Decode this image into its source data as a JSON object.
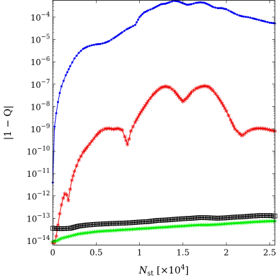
{
  "chart_data": {
    "type": "line",
    "xlabel": "N_st [×10^4]",
    "xlabel_parts": {
      "main": "N",
      "sub": "st",
      "rest": "[×10",
      "sup": "4",
      "close": "]"
    },
    "ylabel": "|1 − Q|",
    "xlim": [
      0,
      2.56
    ],
    "ylim_log10": [
      -14.2,
      -3.25
    ],
    "y_scale": "log",
    "grid": false,
    "x_ticks": [
      {
        "value": 0,
        "label": "0"
      },
      {
        "value": 0.5,
        "label": "0.5"
      },
      {
        "value": 1,
        "label": "1"
      },
      {
        "value": 1.5,
        "label": "1.5"
      },
      {
        "value": 2,
        "label": "2"
      },
      {
        "value": 2.5,
        "label": "2.5"
      }
    ],
    "y_ticks": [
      {
        "exp": -14,
        "base": "10",
        "sup": "−14"
      },
      {
        "exp": -13,
        "base": "10",
        "sup": "−13"
      },
      {
        "exp": -12,
        "base": "10",
        "sup": "−12"
      },
      {
        "exp": -11,
        "base": "10",
        "sup": "−11"
      },
      {
        "exp": -10,
        "base": "10",
        "sup": "−10"
      },
      {
        "exp": -9,
        "base": "10",
        "sup": "−9"
      },
      {
        "exp": -8,
        "base": "10",
        "sup": "−8"
      },
      {
        "exp": -7,
        "base": "10",
        "sup": "−7"
      },
      {
        "exp": -6,
        "base": "10",
        "sup": "−6"
      },
      {
        "exp": -5,
        "base": "10",
        "sup": "−5"
      },
      {
        "exp": -4,
        "base": "10",
        "sup": "−4"
      }
    ],
    "series": [
      {
        "color": "#0000ee",
        "marker": "dot",
        "log10_y": [
          [
            0,
            -11.4
          ],
          [
            0.02,
            -8.9
          ],
          [
            0.04,
            -8.3
          ],
          [
            0.06,
            -7.8
          ],
          [
            0.08,
            -7.4
          ],
          [
            0.1,
            -7.1
          ],
          [
            0.15,
            -6.6
          ],
          [
            0.2,
            -6.2
          ],
          [
            0.25,
            -5.85
          ],
          [
            0.3,
            -5.6
          ],
          [
            0.35,
            -5.42
          ],
          [
            0.4,
            -5.32
          ],
          [
            0.45,
            -5.26
          ],
          [
            0.5,
            -5.22
          ],
          [
            0.55,
            -5.2
          ],
          [
            0.6,
            -5.15
          ],
          [
            0.65,
            -5.07
          ],
          [
            0.7,
            -4.95
          ],
          [
            0.75,
            -4.82
          ],
          [
            0.8,
            -4.68
          ],
          [
            0.85,
            -4.55
          ],
          [
            0.9,
            -4.45
          ],
          [
            0.95,
            -4.35
          ],
          [
            1.0,
            -4.0
          ],
          [
            1.05,
            -3.8
          ],
          [
            1.1,
            -3.7
          ],
          [
            1.15,
            -3.62
          ],
          [
            1.2,
            -3.52
          ],
          [
            1.25,
            -3.42
          ],
          [
            1.3,
            -3.4
          ],
          [
            1.35,
            -3.33
          ],
          [
            1.4,
            -3.27
          ],
          [
            1.45,
            -3.3
          ],
          [
            1.5,
            -3.38
          ],
          [
            1.55,
            -3.45
          ],
          [
            1.6,
            -3.42
          ],
          [
            1.65,
            -3.36
          ],
          [
            1.7,
            -3.34
          ],
          [
            1.75,
            -3.36
          ],
          [
            1.8,
            -3.45
          ],
          [
            1.85,
            -3.55
          ],
          [
            1.9,
            -3.6
          ],
          [
            1.95,
            -3.6
          ],
          [
            2.0,
            -3.65
          ],
          [
            2.05,
            -3.75
          ],
          [
            2.1,
            -3.85
          ],
          [
            2.15,
            -3.93
          ],
          [
            2.2,
            -3.98
          ],
          [
            2.25,
            -4.0
          ],
          [
            2.3,
            -4.05
          ],
          [
            2.35,
            -4.1
          ],
          [
            2.4,
            -4.15
          ],
          [
            2.45,
            -4.2
          ],
          [
            2.5,
            -4.25
          ],
          [
            2.56,
            -4.28
          ]
        ]
      },
      {
        "color": "#ee0000",
        "marker": "star",
        "log10_y": [
          [
            0,
            -14.1
          ],
          [
            0.02,
            -14.1
          ],
          [
            0.04,
            -13.8
          ],
          [
            0.06,
            -13.3
          ],
          [
            0.08,
            -12.8
          ],
          [
            0.1,
            -12.4
          ],
          [
            0.12,
            -12.1
          ],
          [
            0.14,
            -11.9
          ],
          [
            0.16,
            -11.95
          ],
          [
            0.18,
            -12.2
          ],
          [
            0.2,
            -11.7
          ],
          [
            0.22,
            -11.3
          ],
          [
            0.25,
            -10.9
          ],
          [
            0.3,
            -10.4
          ],
          [
            0.35,
            -10.05
          ],
          [
            0.4,
            -9.8
          ],
          [
            0.45,
            -9.55
          ],
          [
            0.5,
            -9.3
          ],
          [
            0.55,
            -9.1
          ],
          [
            0.6,
            -9.0
          ],
          [
            0.65,
            -8.98
          ],
          [
            0.7,
            -9.02
          ],
          [
            0.75,
            -8.98
          ],
          [
            0.8,
            -9.05
          ],
          [
            0.83,
            -9.35
          ],
          [
            0.86,
            -9.7
          ],
          [
            0.88,
            -9.45
          ],
          [
            0.9,
            -9.1
          ],
          [
            0.95,
            -8.7
          ],
          [
            1.0,
            -8.35
          ],
          [
            1.05,
            -8.05
          ],
          [
            1.1,
            -7.75
          ],
          [
            1.15,
            -7.5
          ],
          [
            1.2,
            -7.3
          ],
          [
            1.25,
            -7.15
          ],
          [
            1.3,
            -7.1
          ],
          [
            1.35,
            -7.15
          ],
          [
            1.4,
            -7.3
          ],
          [
            1.45,
            -7.55
          ],
          [
            1.5,
            -7.78
          ],
          [
            1.55,
            -7.6
          ],
          [
            1.6,
            -7.35
          ],
          [
            1.65,
            -7.2
          ],
          [
            1.7,
            -7.12
          ],
          [
            1.75,
            -7.08
          ],
          [
            1.8,
            -7.12
          ],
          [
            1.85,
            -7.3
          ],
          [
            1.9,
            -7.55
          ],
          [
            1.95,
            -7.85
          ],
          [
            2.0,
            -8.2
          ],
          [
            2.05,
            -8.6
          ],
          [
            2.1,
            -9.0
          ],
          [
            2.15,
            -9.2
          ],
          [
            2.18,
            -9.3
          ],
          [
            2.2,
            -9.25
          ],
          [
            2.25,
            -9.1
          ],
          [
            2.3,
            -9.02
          ],
          [
            2.35,
            -8.98
          ],
          [
            2.4,
            -8.98
          ],
          [
            2.45,
            -9.0
          ],
          [
            2.5,
            -9.05
          ],
          [
            2.56,
            -9.1
          ]
        ]
      },
      {
        "color": "#000000",
        "marker": "square",
        "log10_y": [
          [
            0,
            -13.45
          ],
          [
            0.1,
            -13.47
          ],
          [
            0.2,
            -13.45
          ],
          [
            0.3,
            -13.35
          ],
          [
            0.4,
            -13.3
          ],
          [
            0.5,
            -13.27
          ],
          [
            0.6,
            -13.25
          ],
          [
            0.7,
            -13.23
          ],
          [
            0.8,
            -13.22
          ],
          [
            0.9,
            -13.2
          ],
          [
            1.0,
            -13.17
          ],
          [
            1.1,
            -13.15
          ],
          [
            1.2,
            -13.1
          ],
          [
            1.3,
            -13.08
          ],
          [
            1.4,
            -13.05
          ],
          [
            1.5,
            -13.02
          ],
          [
            1.6,
            -13.0
          ],
          [
            1.7,
            -12.97
          ],
          [
            1.8,
            -12.98
          ],
          [
            1.9,
            -13.0
          ],
          [
            2.0,
            -12.98
          ],
          [
            2.1,
            -12.95
          ],
          [
            2.2,
            -12.93
          ],
          [
            2.3,
            -12.9
          ],
          [
            2.4,
            -12.88
          ],
          [
            2.5,
            -12.88
          ],
          [
            2.56,
            -12.9
          ]
        ]
      },
      {
        "color": "#00ee00",
        "marker": "star",
        "log10_y": [
          [
            0,
            -14.05
          ],
          [
            0.05,
            -14.0
          ],
          [
            0.1,
            -13.9
          ],
          [
            0.2,
            -13.8
          ],
          [
            0.3,
            -13.7
          ],
          [
            0.4,
            -13.65
          ],
          [
            0.5,
            -13.6
          ],
          [
            0.6,
            -13.57
          ],
          [
            0.7,
            -13.55
          ],
          [
            0.8,
            -13.52
          ],
          [
            0.9,
            -13.5
          ],
          [
            1.0,
            -13.47
          ],
          [
            1.1,
            -13.45
          ],
          [
            1.2,
            -13.42
          ],
          [
            1.3,
            -13.4
          ],
          [
            1.4,
            -13.37
          ],
          [
            1.5,
            -13.35
          ],
          [
            1.6,
            -13.32
          ],
          [
            1.7,
            -13.3
          ],
          [
            1.8,
            -13.3
          ],
          [
            1.9,
            -13.28
          ],
          [
            2.0,
            -13.25
          ],
          [
            2.1,
            -13.22
          ],
          [
            2.2,
            -13.2
          ],
          [
            2.3,
            -13.17
          ],
          [
            2.4,
            -13.15
          ],
          [
            2.5,
            -13.13
          ],
          [
            2.56,
            -13.13
          ]
        ]
      }
    ]
  }
}
